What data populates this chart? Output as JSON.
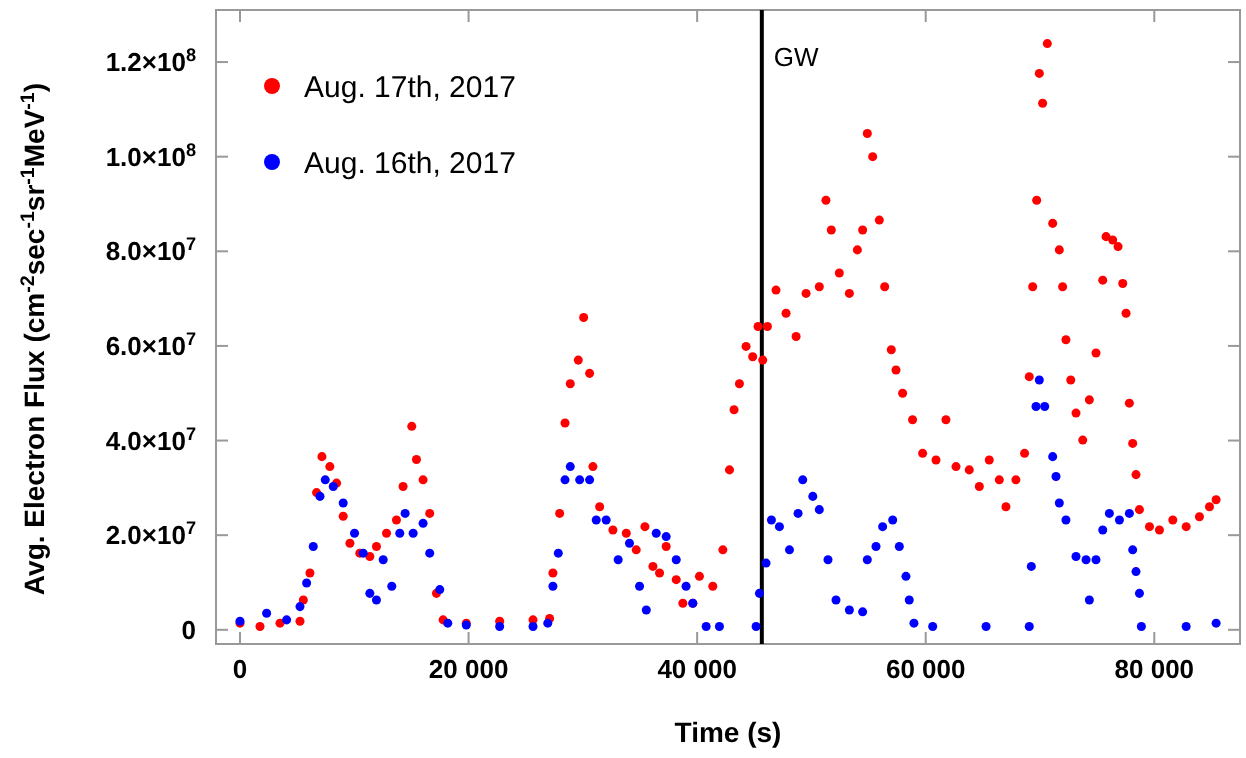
{
  "chart_data": {
    "type": "scatter",
    "xlabel": "Time (s)",
    "ylabel": "Avg. Electron Flux (cm$^{-2}$sec$^{-1}$sr$^{-1}$MeV$^{-1}$)",
    "xlim": [
      -2100,
      87500
    ],
    "ylim": [
      -3000000.0,
      131000000.0
    ],
    "xticks": [
      0,
      {
        "value": 20000,
        "label": "20 000"
      },
      {
        "value": 40000,
        "label": "40 000"
      },
      {
        "value": 60000,
        "label": "60 000"
      },
      {
        "value": 80000,
        "label": "80 000"
      }
    ],
    "yticks": [
      0,
      {
        "value": 20000000.0,
        "label": "2.0×10$^{7}$"
      },
      {
        "value": 40000000.0,
        "label": "4.0×10$^{7}$"
      },
      {
        "value": 60000000.0,
        "label": "6.0×10$^{7}$"
      },
      {
        "value": 80000000.0,
        "label": "8.0×10$^{7}$"
      },
      {
        "value": 100000000.0,
        "label": "1.0×10$^{8}$"
      },
      {
        "value": 120000000.0,
        "label": "1.2×10$^{8}$"
      }
    ],
    "grid": false,
    "legend": "top left",
    "marker": "circle",
    "ref_lines": [
      {
        "axis": "x",
        "value": 45660,
        "label": "GW",
        "color": "#000000"
      }
    ],
    "series": [
      {
        "name": "Aug. 17th, 2017",
        "color": "#ff0000",
        "x": [
          0,
          1750,
          3500,
          5250,
          5540,
          6120,
          6700,
          7170,
          7860,
          8450,
          9030,
          9620,
          10480,
          11360,
          11940,
          12820,
          13690,
          14270,
          15030,
          15440,
          16020,
          16600,
          17190,
          17770,
          19800,
          22720,
          25640,
          27090,
          27380,
          27970,
          28440,
          28900,
          29600,
          30070,
          30590,
          30880,
          31470,
          32630,
          33800,
          34670,
          35430,
          36130,
          36710,
          37290,
          38170,
          38750,
          39620,
          40200,
          41370,
          42250,
          42830,
          43230,
          43700,
          44280,
          44860,
          45330,
          45740,
          46150,
          46900,
          47780,
          48660,
          49530,
          50690,
          51270,
          51740,
          52440,
          53320,
          54020,
          54480,
          54890,
          55360,
          55940,
          56410,
          56990,
          57400,
          57980,
          58850,
          59730,
          60900,
          61770,
          62650,
          63810,
          64690,
          65560,
          66440,
          67020,
          67890,
          68650,
          69060,
          69360,
          69710,
          69940,
          70230,
          70640,
          71110,
          71690,
          71980,
          72270,
          72690,
          73150,
          73740,
          74320,
          74900,
          75490,
          75780,
          76360,
          76830,
          77240,
          77530,
          77820,
          78110,
          78400,
          78700,
          79580,
          80450,
          81620,
          82790,
          83950,
          84830,
          85410
        ],
        "values": [
          1400000.0,
          700000.0,
          1400000.0,
          1800000.0,
          6300000.0,
          12000000.0,
          29000000.0,
          36600000.0,
          34500000.0,
          31000000.0,
          24000000.0,
          18300000.0,
          16200000.0,
          15500000.0,
          17600000.0,
          20400000.0,
          23200000.0,
          30300000.0,
          43000000.0,
          36000000.0,
          31700000.0,
          24600000.0,
          7700000.0,
          2100000.0,
          1400000.0,
          1800000.0,
          2100000.0,
          2400000.0,
          12000000.0,
          24600000.0,
          43700000.0,
          52000000.0,
          57000000.0,
          66000000.0,
          54200000.0,
          34500000.0,
          26000000.0,
          21100000.0,
          20400000.0,
          16900000.0,
          21800000.0,
          13400000.0,
          12000000.0,
          17600000.0,
          10600000.0,
          5600000.0,
          5600000.0,
          11300000.0,
          9200000.0,
          16900000.0,
          33800000.0,
          46500000.0,
          52000000.0,
          59900000.0,
          57700000.0,
          64100000.0,
          57000000.0,
          64100000.0,
          71800000.0,
          66900000.0,
          62000000.0,
          71100000.0,
          72500000.0,
          90800000.0,
          84500000.0,
          75400000.0,
          71100000.0,
          80300000.0,
          84500000.0,
          104900000.0,
          100000000.0,
          86600000.0,
          72500000.0,
          59200000.0,
          54900000.0,
          50000000.0,
          44400000.0,
          37300000.0,
          35900000.0,
          44400000.0,
          34500000.0,
          33800000.0,
          30300000.0,
          35900000.0,
          31700000.0,
          26000000.0,
          31700000.0,
          37300000.0,
          53500000.0,
          72500000.0,
          90800000.0,
          117600000.0,
          111300000.0,
          123900000.0,
          85900000.0,
          80300000.0,
          72500000.0,
          61300000.0,
          52800000.0,
          45800000.0,
          40100000.0,
          48600000.0,
          58500000.0,
          73900000.0,
          83100000.0,
          82400000.0,
          81000000.0,
          73200000.0,
          66900000.0,
          47900000.0,
          39400000.0,
          32800000.0,
          25400000.0,
          21800000.0,
          21100000.0,
          23200000.0,
          21800000.0,
          23900000.0,
          26000000.0,
          27500000.0
        ]
      },
      {
        "name": "Aug. 16th, 2017",
        "color": "#0000ff",
        "x": [
          0,
          2330,
          4080,
          5250,
          5830,
          6410,
          7000,
          7460,
          8160,
          9030,
          10020,
          10780,
          11360,
          11940,
          12530,
          13280,
          13980,
          14450,
          15150,
          16020,
          16600,
          17480,
          18180,
          19800,
          22720,
          25640,
          26930,
          27380,
          27850,
          28440,
          28900,
          29720,
          30590,
          31170,
          32040,
          33090,
          34080,
          34960,
          35550,
          36420,
          37290,
          38170,
          39030,
          39620,
          40790,
          41950,
          45160,
          45450,
          46030,
          46500,
          47200,
          48080,
          48830,
          49240,
          50120,
          50690,
          51450,
          52150,
          53320,
          54480,
          54890,
          55650,
          56230,
          57110,
          57690,
          58270,
          58560,
          58970,
          60610,
          65280,
          69060,
          69240,
          69650,
          69940,
          70410,
          71110,
          71400,
          71690,
          72270,
          73150,
          74030,
          74320,
          74900,
          75490,
          76070,
          76950,
          77820,
          78110,
          78400,
          78700,
          78870,
          82790,
          85410
        ],
        "values": [
          1800000.0,
          3500000.0,
          2100000.0,
          4900000.0,
          9900000.0,
          17600000.0,
          28200000.0,
          31700000.0,
          30300000.0,
          26800000.0,
          20400000.0,
          16200000.0,
          7700000.0,
          6300000.0,
          14800000.0,
          9200000.0,
          20400000.0,
          24600000.0,
          20400000.0,
          22500000.0,
          16200000.0,
          8500000.0,
          1400000.0,
          1000000.0,
          700000.0,
          700000.0,
          1400000.0,
          9200000.0,
          16200000.0,
          31700000.0,
          34500000.0,
          31700000.0,
          31700000.0,
          23200000.0,
          23200000.0,
          14800000.0,
          18300000.0,
          9200000.0,
          4200000.0,
          20400000.0,
          19700000.0,
          14800000.0,
          9200000.0,
          5600000.0,
          700000.0,
          700000.0,
          700000.0,
          7700000.0,
          14100000.0,
          23200000.0,
          21800000.0,
          16900000.0,
          24600000.0,
          31700000.0,
          28200000.0,
          25400000.0,
          14800000.0,
          6300000.0,
          4200000.0,
          3800000.0,
          14800000.0,
          17600000.0,
          21800000.0,
          23200000.0,
          17600000.0,
          11300000.0,
          6300000.0,
          1400000.0,
          700000.0,
          700000.0,
          700000.0,
          13400000.0,
          47200000.0,
          52800000.0,
          47200000.0,
          36600000.0,
          32400000.0,
          26800000.0,
          23200000.0,
          15500000.0,
          14800000.0,
          6300000.0,
          14800000.0,
          21100000.0,
          24600000.0,
          23200000.0,
          24600000.0,
          16900000.0,
          12300000.0,
          7700000.0,
          700000.0,
          700000.0,
          1400000.0
        ]
      }
    ]
  }
}
